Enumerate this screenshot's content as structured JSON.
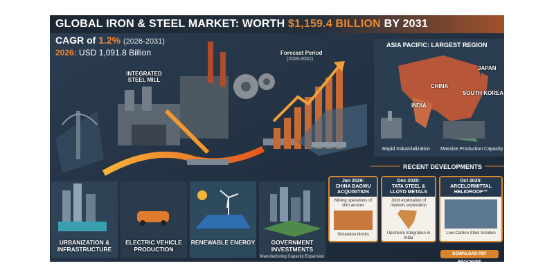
{
  "header": {
    "title_start": "GLOBAL IRON & STEEL MARKET: WORTH",
    "title_value": "$1,159.4 BILLION",
    "title_end": "BY 2031",
    "cagr_label": "CAGR of",
    "cagr_value": "1.2%",
    "cagr_period": "(2026-2031)",
    "base_label": "2026:",
    "base_value": "USD 1,091.8 Billion"
  },
  "illustration": {
    "mill_label": "INTEGRATED STEEL MILL",
    "forecast_label": "Forecast Period",
    "forecast_period": "(2026-2031)"
  },
  "region": {
    "title": "ASIA PACIFIC: LARGEST REGION",
    "labels": [
      "CHINA",
      "JAPAN",
      "SOUTH KOREA",
      "INDIA"
    ],
    "captions": [
      "Rapid Industrialization",
      "Massive Production Capacity"
    ]
  },
  "developments": {
    "title": "RECENT DEVELOPMENTS",
    "cards": [
      {
        "date": "Jan 2026:",
        "headline": "CHINA BAOWU ACQUISITION",
        "text": "Mining operations of skirt anoses",
        "caption": "Simandou blocks"
      },
      {
        "date": "Dec 2025:",
        "headline": "TATA STEEL & LLOYD METALS",
        "text": "Joint exploration of markets exploration",
        "caption": "Upstream Integration in India"
      },
      {
        "date": "Oct 2025:",
        "headline": "ARCELORMITTAL HELIOROOF™",
        "caption": "Low-Carbon Steel Solution"
      }
    ],
    "button": "DOWNLOAD PDF BROCHURE"
  },
  "drivers": [
    {
      "label": "URBANIZATION & INFRASTRUCTURE"
    },
    {
      "label": "ELECTRIC VEHICLE PRODUCTION"
    },
    {
      "label": "RENEWABLE ENERGY"
    },
    {
      "label": "GOVERNMENT INVESTMENTS",
      "caption": "Manufacturing Capacity Expansion"
    }
  ]
}
